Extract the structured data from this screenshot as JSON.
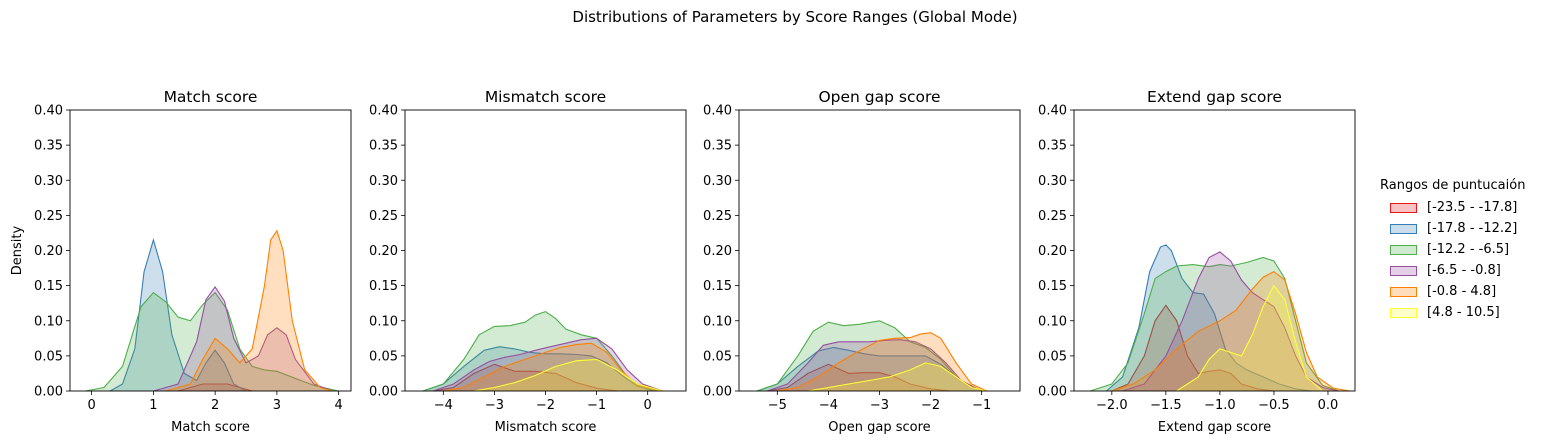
{
  "figure": {
    "suptitle": "Distributions of Parameters by Score Ranges (Global Mode)",
    "ylabel": "Density"
  },
  "legend": {
    "title": "Rangos de puntucaión",
    "entries": [
      {
        "label": "[-23.5 - -17.8]",
        "color": "#e41a1c"
      },
      {
        "label": "[-17.8 - -12.2]",
        "color": "#377eb8"
      },
      {
        "label": "[-12.2 - -6.5]",
        "color": "#4daf4a"
      },
      {
        "label": "[-6.5 - -0.8]",
        "color": "#984ea3"
      },
      {
        "label": "[-0.8 - 4.8]",
        "color": "#ff7f00"
      },
      {
        "label": "[4.8 - 10.5]",
        "color": "#ffff33"
      }
    ]
  },
  "chart_data": [
    {
      "type": "area",
      "title": "Match score",
      "xlabel": "Match score",
      "ylabel": "Density",
      "xlim": [
        -0.35,
        4.2
      ],
      "ylim": [
        0,
        0.4
      ],
      "xticks": [
        0,
        1,
        2,
        3,
        4
      ],
      "xtick_labels": [
        "0",
        "1",
        "2",
        "3",
        "4"
      ],
      "yticks": [
        0,
        0.05,
        0.1,
        0.15,
        0.2,
        0.25,
        0.3,
        0.35,
        0.4
      ],
      "ytick_labels": [
        "0.00",
        "0.05",
        "0.10",
        "0.15",
        "0.20",
        "0.25",
        "0.30",
        "0.35",
        "0.40"
      ],
      "series": [
        {
          "name": "[-23.5 - -17.8]",
          "x": [
            1.4,
            1.8,
            2.0,
            2.2,
            2.6
          ],
          "y": [
            0,
            0.01,
            0.01,
            0.01,
            0
          ]
        },
        {
          "name": "[-17.8 - -12.2]",
          "x": [
            0.3,
            0.5,
            0.7,
            0.85,
            1.0,
            1.15,
            1.3,
            1.5,
            1.7,
            1.85,
            2.0,
            2.15,
            2.3,
            2.5
          ],
          "y": [
            0,
            0.01,
            0.06,
            0.17,
            0.215,
            0.17,
            0.08,
            0.025,
            0.015,
            0.04,
            0.058,
            0.04,
            0.01,
            0
          ]
        },
        {
          "name": "[-12.2 - -6.5]",
          "x": [
            -0.1,
            0.2,
            0.5,
            0.8,
            1.0,
            1.2,
            1.4,
            1.6,
            1.8,
            2.0,
            2.2,
            2.4,
            2.6,
            2.8,
            3.0,
            3.3,
            3.6,
            3.9,
            4.0
          ],
          "y": [
            0,
            0.005,
            0.035,
            0.12,
            0.14,
            0.127,
            0.105,
            0.1,
            0.123,
            0.14,
            0.115,
            0.06,
            0.035,
            0.03,
            0.028,
            0.018,
            0.008,
            0.002,
            0
          ]
        },
        {
          "name": "[-6.5 - -0.8]",
          "x": [
            1.0,
            1.4,
            1.7,
            1.85,
            2.0,
            2.15,
            2.3,
            2.5,
            2.7,
            2.85,
            3.0,
            3.15,
            3.3,
            3.6,
            3.9
          ],
          "y": [
            0,
            0.01,
            0.07,
            0.13,
            0.148,
            0.128,
            0.075,
            0.04,
            0.05,
            0.08,
            0.09,
            0.08,
            0.045,
            0.01,
            0
          ]
        },
        {
          "name": "[-0.8 - 4.8]",
          "x": [
            1.2,
            1.6,
            1.8,
            2.0,
            2.2,
            2.4,
            2.6,
            2.8,
            2.9,
            3.0,
            3.1,
            3.25,
            3.45,
            3.7,
            3.9
          ],
          "y": [
            0,
            0.01,
            0.045,
            0.075,
            0.06,
            0.04,
            0.06,
            0.15,
            0.215,
            0.228,
            0.2,
            0.1,
            0.03,
            0.005,
            0
          ]
        }
      ]
    },
    {
      "type": "area",
      "title": "Mismatch score",
      "xlabel": "Mismatch score",
      "ylabel": "",
      "xlim": [
        -4.75,
        0.75
      ],
      "ylim": [
        0,
        0.4
      ],
      "xticks": [
        -4,
        -3,
        -2,
        -1,
        0
      ],
      "xtick_labels": [
        "−4",
        "−3",
        "−2",
        "−1",
        "0"
      ],
      "yticks": [
        0,
        0.05,
        0.1,
        0.15,
        0.2,
        0.25,
        0.3,
        0.35,
        0.4
      ],
      "ytick_labels": [
        "0.00",
        "0.05",
        "0.10",
        "0.15",
        "0.20",
        "0.25",
        "0.30",
        "0.35",
        "0.40"
      ],
      "series": [
        {
          "name": "[-23.5 - -17.8]",
          "x": [
            -4.2,
            -3.8,
            -3.4,
            -3.0,
            -2.6,
            -2.2,
            -1.8,
            -1.4,
            -1.0,
            -0.6
          ],
          "y": [
            0,
            0.005,
            0.025,
            0.038,
            0.028,
            0.028,
            0.025,
            0.012,
            0.004,
            0
          ]
        },
        {
          "name": "[-17.8 - -12.2]",
          "x": [
            -4.4,
            -4.0,
            -3.6,
            -3.2,
            -2.9,
            -2.6,
            -2.3,
            -2.0,
            -1.7,
            -1.4,
            -1.1,
            -0.8,
            -0.5,
            -0.2,
            0.1
          ],
          "y": [
            0,
            0.01,
            0.035,
            0.058,
            0.063,
            0.06,
            0.055,
            0.053,
            0.053,
            0.052,
            0.05,
            0.04,
            0.022,
            0.007,
            0
          ]
        },
        {
          "name": "[-12.2 - -6.5]",
          "x": [
            -4.4,
            -4.0,
            -3.6,
            -3.3,
            -3.0,
            -2.7,
            -2.4,
            -2.2,
            -2.0,
            -1.8,
            -1.6,
            -1.3,
            -1.0,
            -0.7,
            -0.4,
            -0.1,
            0.2
          ],
          "y": [
            0,
            0.01,
            0.045,
            0.08,
            0.092,
            0.093,
            0.098,
            0.108,
            0.113,
            0.103,
            0.088,
            0.08,
            0.075,
            0.05,
            0.02,
            0.005,
            0
          ]
        },
        {
          "name": "[-6.5 - -0.8]",
          "x": [
            -4.2,
            -3.8,
            -3.4,
            -3.1,
            -2.8,
            -2.5,
            -2.2,
            -1.9,
            -1.6,
            -1.3,
            -1.0,
            -0.7,
            -0.4,
            -0.1,
            0.3
          ],
          "y": [
            0,
            0.01,
            0.03,
            0.042,
            0.048,
            0.052,
            0.058,
            0.063,
            0.068,
            0.073,
            0.075,
            0.06,
            0.03,
            0.01,
            0
          ]
        },
        {
          "name": "[-0.8 - 4.8]",
          "x": [
            -4.0,
            -3.6,
            -3.2,
            -2.8,
            -2.4,
            -2.0,
            -1.7,
            -1.4,
            -1.1,
            -0.8,
            -0.5,
            -0.2,
            0.3
          ],
          "y": [
            0,
            0.005,
            0.02,
            0.035,
            0.045,
            0.055,
            0.062,
            0.066,
            0.068,
            0.055,
            0.028,
            0.008,
            0
          ]
        },
        {
          "name": "[4.8 - 10.5]",
          "x": [
            -3.4,
            -3.0,
            -2.6,
            -2.2,
            -1.8,
            -1.4,
            -1.0,
            -0.6,
            -0.2,
            0.3
          ],
          "y": [
            0,
            0.005,
            0.012,
            0.022,
            0.035,
            0.043,
            0.045,
            0.03,
            0.01,
            0
          ]
        }
      ]
    },
    {
      "type": "area",
      "title": "Open gap score",
      "xlabel": "Open gap score",
      "ylabel": "",
      "xlim": [
        -5.75,
        -0.25
      ],
      "ylim": [
        0,
        0.4
      ],
      "xticks": [
        -5,
        -4,
        -3,
        -2,
        -1
      ],
      "xtick_labels": [
        "−5",
        "−4",
        "−3",
        "−2",
        "−1"
      ],
      "yticks": [
        0,
        0.05,
        0.1,
        0.15,
        0.2,
        0.25,
        0.3,
        0.35,
        0.4
      ],
      "ytick_labels": [
        "0.00",
        "0.05",
        "0.10",
        "0.15",
        "0.20",
        "0.25",
        "0.30",
        "0.35",
        "0.40"
      ],
      "series": [
        {
          "name": "[-23.5 - -17.8]",
          "x": [
            -5.2,
            -4.8,
            -4.4,
            -4.0,
            -3.6,
            -3.3,
            -3.0,
            -2.7,
            -2.4,
            -2.0,
            -1.6
          ],
          "y": [
            0,
            0.005,
            0.025,
            0.038,
            0.025,
            0.026,
            0.026,
            0.02,
            0.01,
            0.003,
            0
          ]
        },
        {
          "name": "[-17.8 - -12.2]",
          "x": [
            -5.4,
            -5.0,
            -4.6,
            -4.2,
            -3.9,
            -3.6,
            -3.3,
            -3.0,
            -2.7,
            -2.4,
            -2.1,
            -1.8,
            -1.5,
            -1.2,
            -0.9
          ],
          "y": [
            0,
            0.01,
            0.035,
            0.057,
            0.062,
            0.058,
            0.053,
            0.05,
            0.05,
            0.05,
            0.05,
            0.038,
            0.02,
            0.005,
            0
          ]
        },
        {
          "name": "[-12.2 - -6.5]",
          "x": [
            -5.4,
            -5.0,
            -4.6,
            -4.3,
            -4.0,
            -3.7,
            -3.4,
            -3.0,
            -2.7,
            -2.4,
            -2.1,
            -1.8,
            -1.5,
            -1.2,
            -0.9
          ],
          "y": [
            0,
            0.01,
            0.05,
            0.085,
            0.098,
            0.093,
            0.095,
            0.1,
            0.09,
            0.07,
            0.062,
            0.045,
            0.02,
            0.005,
            0
          ]
        },
        {
          "name": "[-6.5 - -0.8]",
          "x": [
            -5.2,
            -4.8,
            -4.4,
            -4.1,
            -3.8,
            -3.5,
            -3.2,
            -2.9,
            -2.6,
            -2.3,
            -2.0,
            -1.7,
            -1.4,
            -1.0
          ],
          "y": [
            0,
            0.01,
            0.04,
            0.065,
            0.07,
            0.07,
            0.07,
            0.072,
            0.073,
            0.07,
            0.06,
            0.04,
            0.015,
            0
          ]
        },
        {
          "name": "[-0.8 - 4.8]",
          "x": [
            -5.0,
            -4.6,
            -4.2,
            -3.8,
            -3.4,
            -3.0,
            -2.7,
            -2.4,
            -2.2,
            -2.0,
            -1.8,
            -1.5,
            -1.2,
            -0.9
          ],
          "y": [
            0,
            0.005,
            0.02,
            0.04,
            0.057,
            0.072,
            0.075,
            0.076,
            0.081,
            0.083,
            0.075,
            0.04,
            0.01,
            0
          ]
        },
        {
          "name": "[4.8 - 10.5]",
          "x": [
            -4.4,
            -4.0,
            -3.6,
            -3.2,
            -2.8,
            -2.4,
            -2.1,
            -1.8,
            -1.5,
            -1.2,
            -0.9
          ],
          "y": [
            0,
            0.005,
            0.01,
            0.015,
            0.02,
            0.03,
            0.04,
            0.035,
            0.02,
            0.005,
            0
          ]
        }
      ]
    },
    {
      "type": "area",
      "title": "Extend gap score",
      "xlabel": "Extend gap score",
      "ylabel": "",
      "xlim": [
        -2.35,
        0.25
      ],
      "ylim": [
        0,
        0.4
      ],
      "xticks": [
        -2,
        -1.5,
        -1,
        -0.5,
        0
      ],
      "xtick_labels": [
        "−2.0",
        "−1.5",
        "−1.0",
        "−0.5",
        "0.0"
      ],
      "yticks": [
        0,
        0.05,
        0.1,
        0.15,
        0.2,
        0.25,
        0.3,
        0.35,
        0.4
      ],
      "ytick_labels": [
        "0.00",
        "0.05",
        "0.10",
        "0.15",
        "0.20",
        "0.25",
        "0.30",
        "0.35",
        "0.40"
      ],
      "series": [
        {
          "name": "[-23.5 - -17.8]",
          "x": [
            -2.0,
            -1.85,
            -1.7,
            -1.6,
            -1.5,
            -1.4,
            -1.3,
            -1.2,
            -1.1,
            -1.0,
            -0.9,
            -0.8,
            -0.65,
            -0.5
          ],
          "y": [
            0,
            0.01,
            0.05,
            0.1,
            0.122,
            0.1,
            0.05,
            0.025,
            0.028,
            0.03,
            0.025,
            0.01,
            0.003,
            0
          ]
        },
        {
          "name": "[-17.8 - -12.2]",
          "x": [
            -2.05,
            -1.9,
            -1.75,
            -1.65,
            -1.55,
            -1.5,
            -1.45,
            -1.35,
            -1.25,
            -1.15,
            -1.05,
            -0.95,
            -0.85,
            -0.75,
            -0.6,
            -0.45,
            -0.3,
            -0.15
          ],
          "y": [
            0,
            0.02,
            0.09,
            0.17,
            0.205,
            0.208,
            0.2,
            0.16,
            0.14,
            0.138,
            0.11,
            0.06,
            0.04,
            0.03,
            0.02,
            0.01,
            0.003,
            0
          ]
        },
        {
          "name": "[-12.2 - -6.5]",
          "x": [
            -2.2,
            -2.0,
            -1.85,
            -1.7,
            -1.6,
            -1.5,
            -1.4,
            -1.25,
            -1.1,
            -1.0,
            -0.9,
            -0.75,
            -0.6,
            -0.5,
            -0.4,
            -0.3,
            -0.2,
            -0.05,
            0.1
          ],
          "y": [
            0,
            0.01,
            0.04,
            0.11,
            0.16,
            0.17,
            0.178,
            0.18,
            0.177,
            0.18,
            0.178,
            0.183,
            0.19,
            0.185,
            0.16,
            0.1,
            0.04,
            0.008,
            0
          ]
        },
        {
          "name": "[-6.5 - -0.8]",
          "x": [
            -1.9,
            -1.7,
            -1.5,
            -1.35,
            -1.2,
            -1.1,
            -1.0,
            -0.9,
            -0.8,
            -0.7,
            -0.6,
            -0.5,
            -0.4,
            -0.3,
            -0.2,
            -0.05,
            0.1
          ],
          "y": [
            0,
            0.01,
            0.05,
            0.1,
            0.16,
            0.19,
            0.198,
            0.185,
            0.158,
            0.14,
            0.13,
            0.12,
            0.09,
            0.05,
            0.02,
            0.005,
            0
          ]
        },
        {
          "name": "[-0.8 - 4.8]",
          "x": [
            -2.0,
            -1.8,
            -1.6,
            -1.4,
            -1.2,
            -1.0,
            -0.85,
            -0.7,
            -0.6,
            -0.5,
            -0.4,
            -0.3,
            -0.2,
            -0.1,
            0.05,
            0.2
          ],
          "y": [
            0,
            0.01,
            0.03,
            0.06,
            0.085,
            0.1,
            0.115,
            0.145,
            0.162,
            0.17,
            0.158,
            0.11,
            0.055,
            0.02,
            0.004,
            0
          ]
        },
        {
          "name": "[4.8 - 10.5]",
          "x": [
            -1.4,
            -1.2,
            -1.1,
            -1.0,
            -0.9,
            -0.8,
            -0.7,
            -0.6,
            -0.5,
            -0.4,
            -0.3,
            -0.2,
            -0.05
          ],
          "y": [
            0,
            0.02,
            0.045,
            0.06,
            0.055,
            0.05,
            0.08,
            0.12,
            0.15,
            0.13,
            0.07,
            0.02,
            0
          ]
        }
      ]
    }
  ]
}
